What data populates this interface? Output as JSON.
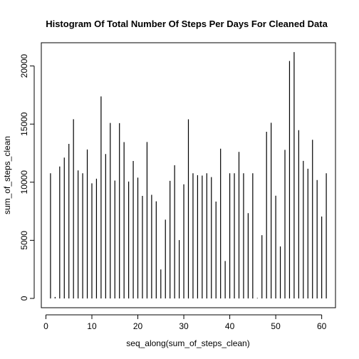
{
  "chart_data": {
    "type": "bar",
    "title": "Histogram Of Total Number Of Steps Per Days For Cleaned Data",
    "xlabel": "seq_along(sum_of_steps_clean)",
    "ylabel": "sum_of_steps_clean",
    "xlim": [
      -1,
      63
    ],
    "ylim": [
      -800,
      22000
    ],
    "x_ticks": [
      0,
      10,
      20,
      30,
      40,
      50,
      60
    ],
    "y_ticks": [
      0,
      5000,
      10000,
      15000,
      20000
    ],
    "x": [
      1,
      2,
      3,
      4,
      5,
      6,
      7,
      8,
      9,
      10,
      11,
      12,
      13,
      14,
      15,
      16,
      17,
      18,
      19,
      20,
      21,
      22,
      23,
      24,
      25,
      26,
      27,
      28,
      29,
      30,
      31,
      32,
      33,
      34,
      35,
      36,
      37,
      38,
      39,
      40,
      41,
      42,
      43,
      44,
      45,
      46,
      47,
      48,
      49,
      50,
      51,
      52,
      53,
      54,
      55,
      56,
      57,
      58,
      59,
      60,
      61
    ],
    "values": [
      10766,
      126,
      11352,
      12116,
      13294,
      15420,
      11015,
      10766,
      12811,
      9900,
      10304,
      17382,
      12426,
      15098,
      10139,
      15084,
      13452,
      10056,
      11829,
      10395,
      8821,
      13460,
      8918,
      8355,
      2492,
      6778,
      10119,
      11458,
      5018,
      9819,
      15414,
      10766,
      10600,
      10571,
      10766,
      10439,
      8334,
      12883,
      3219,
      10766,
      10766,
      12608,
      10765,
      7336,
      10766,
      41,
      5441,
      14339,
      15110,
      8841,
      4472,
      12787,
      20427,
      21194,
      14478,
      11834,
      11162,
      13646,
      10183,
      7047,
      10766
    ],
    "grid": false
  }
}
